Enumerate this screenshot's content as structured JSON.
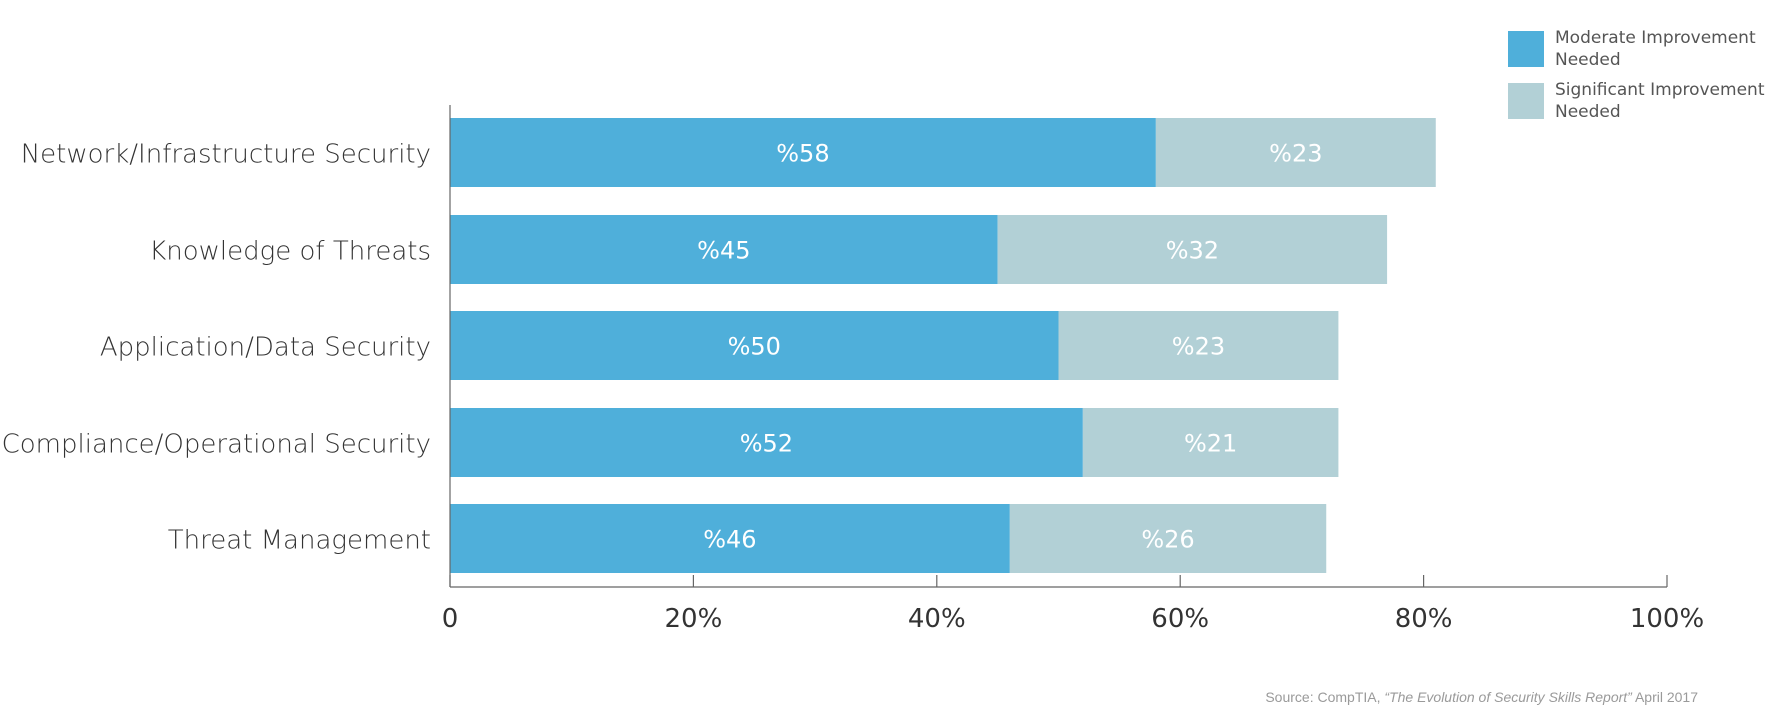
{
  "chart_data": {
    "type": "bar",
    "orientation": "horizontal",
    "stacked": true,
    "categories": [
      "Network/Infrastructure Security",
      "Knowledge of Threats",
      "Application/Data Security",
      "Compliance/Operational Security",
      "Threat Management"
    ],
    "series": [
      {
        "name": "Moderate Improvement Needed",
        "color": "#4fafda",
        "values": [
          58,
          45,
          50,
          52,
          46
        ],
        "labels": [
          "%58",
          "%45",
          "%50",
          "%52",
          "%46"
        ]
      },
      {
        "name": "Significant Improvement Needed",
        "color": "#b2d0d6",
        "values": [
          23,
          32,
          23,
          21,
          26
        ],
        "labels": [
          "%23",
          "%32",
          "%23",
          "%21",
          "%26"
        ]
      }
    ],
    "xlim": [
      0,
      100
    ],
    "xticks": [
      0,
      20,
      40,
      60,
      80,
      100
    ],
    "xtick_labels": [
      "0",
      "20%",
      "40%",
      "60%",
      "80%",
      "100%"
    ],
    "legend": {
      "position": "top-right",
      "entries": [
        [
          "Moderate Improvement",
          "Needed"
        ],
        [
          "Significant Improvement",
          "Needed"
        ]
      ]
    },
    "grid": false
  },
  "source": {
    "prefix": "Source: CompTIA, ",
    "title": "“The Evolution of Security Skills Report”",
    "suffix": " April 2017"
  }
}
